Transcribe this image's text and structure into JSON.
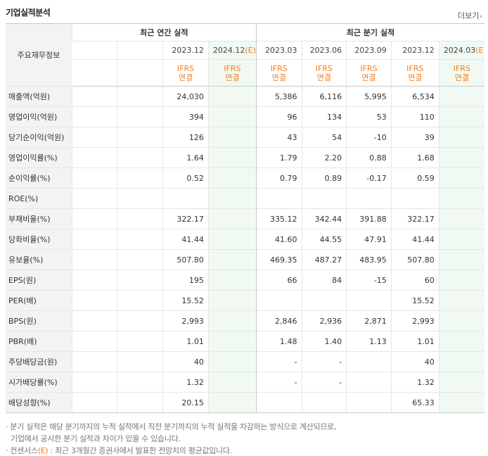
{
  "header": {
    "title": "기업실적분석",
    "more": "더보기",
    "more_arrow": "›"
  },
  "table": {
    "label_header": "주요재무정보",
    "group_annual": "최근 연간 실적",
    "group_quarter": "최근 분기 실적",
    "annual_periods": [
      "",
      "",
      "2023.12",
      "2024.12(E)"
    ],
    "quarter_periods": [
      "2023.03",
      "2023.06",
      "2023.09",
      "2023.12",
      "2024.03(E)"
    ],
    "annual_basis": [
      "",
      "",
      "IFRS\n연결",
      "IFRS\n연결"
    ],
    "quarter_basis": [
      "IFRS\n연결",
      "IFRS\n연결",
      "IFRS\n연결",
      "IFRS\n연결",
      "IFRS\n연결"
    ],
    "rows": [
      {
        "label": "매출액(억원)",
        "annual": [
          "",
          "",
          "24,030",
          ""
        ],
        "quarter": [
          "5,386",
          "6,116",
          "5,995",
          "6,534",
          ""
        ]
      },
      {
        "label": "영업이익(억원)",
        "annual": [
          "",
          "",
          "394",
          ""
        ],
        "quarter": [
          "96",
          "134",
          "53",
          "110",
          ""
        ]
      },
      {
        "label": "당기순이익(억원)",
        "annual": [
          "",
          "",
          "126",
          ""
        ],
        "quarter": [
          "43",
          "54",
          "-10",
          "39",
          ""
        ]
      },
      {
        "label": "영업이익률(%)",
        "annual": [
          "",
          "",
          "1.64",
          ""
        ],
        "quarter": [
          "1.79",
          "2.20",
          "0.88",
          "1.68",
          ""
        ]
      },
      {
        "label": "순이익률(%)",
        "annual": [
          "",
          "",
          "0.52",
          ""
        ],
        "quarter": [
          "0.79",
          "0.89",
          "-0.17",
          "0.59",
          ""
        ]
      },
      {
        "label": "ROE(%)",
        "annual": [
          "",
          "",
          "",
          ""
        ],
        "quarter": [
          "",
          "",
          "",
          "",
          ""
        ]
      },
      {
        "label": "부채비율(%)",
        "annual": [
          "",
          "",
          "322.17",
          ""
        ],
        "quarter": [
          "335.12",
          "342.44",
          "391.88",
          "322.17",
          ""
        ]
      },
      {
        "label": "당좌비율(%)",
        "annual": [
          "",
          "",
          "41.44",
          ""
        ],
        "quarter": [
          "41.60",
          "44.55",
          "47.91",
          "41.44",
          ""
        ]
      },
      {
        "label": "유보율(%)",
        "annual": [
          "",
          "",
          "507.80",
          ""
        ],
        "quarter": [
          "469.35",
          "487.27",
          "483.95",
          "507.80",
          ""
        ]
      },
      {
        "label": "EPS(원)",
        "annual": [
          "",
          "",
          "195",
          ""
        ],
        "quarter": [
          "66",
          "84",
          "-15",
          "60",
          ""
        ]
      },
      {
        "label": "PER(배)",
        "annual": [
          "",
          "",
          "15.52",
          ""
        ],
        "quarter": [
          "",
          "",
          "",
          "15.52",
          ""
        ]
      },
      {
        "label": "BPS(원)",
        "annual": [
          "",
          "",
          "2,993",
          ""
        ],
        "quarter": [
          "2,846",
          "2,936",
          "2,871",
          "2,993",
          ""
        ]
      },
      {
        "label": "PBR(배)",
        "annual": [
          "",
          "",
          "1.01",
          ""
        ],
        "quarter": [
          "1.48",
          "1.40",
          "1.13",
          "1.01",
          ""
        ]
      },
      {
        "label": "주당배당금(원)",
        "annual": [
          "",
          "",
          "40",
          ""
        ],
        "quarter": [
          "-",
          "-",
          "",
          "40",
          ""
        ]
      },
      {
        "label": "시가배당률(%)",
        "annual": [
          "",
          "",
          "1.32",
          ""
        ],
        "quarter": [
          "-",
          "-",
          "",
          "1.32",
          ""
        ]
      },
      {
        "label": "배당성향(%)",
        "annual": [
          "",
          "",
          "20.15",
          ""
        ],
        "quarter": [
          "",
          "",
          "",
          "65.33",
          ""
        ]
      }
    ],
    "group_starts": [
      3,
      6,
      9,
      13
    ]
  },
  "notes": {
    "line1": "· 분기 실적은 해당 분기까지의 누적 실적에서 직전 분기까지의 누적 실적을 차감하는 방식으로 계산되므로,",
    "line2": "기업에서 공시한 분기 실적과 차이가 있을 수 있습니다.",
    "line3": "· 컨센서스(E) : 최근 3개월간 증권사에서 발표한 전망치의 평균값입니다."
  },
  "colors": {
    "ifrs": "#f07d1e",
    "negative": "#ee0000",
    "forecast_bg": "#f1faf2",
    "label_bg": "#f3f3f3"
  }
}
